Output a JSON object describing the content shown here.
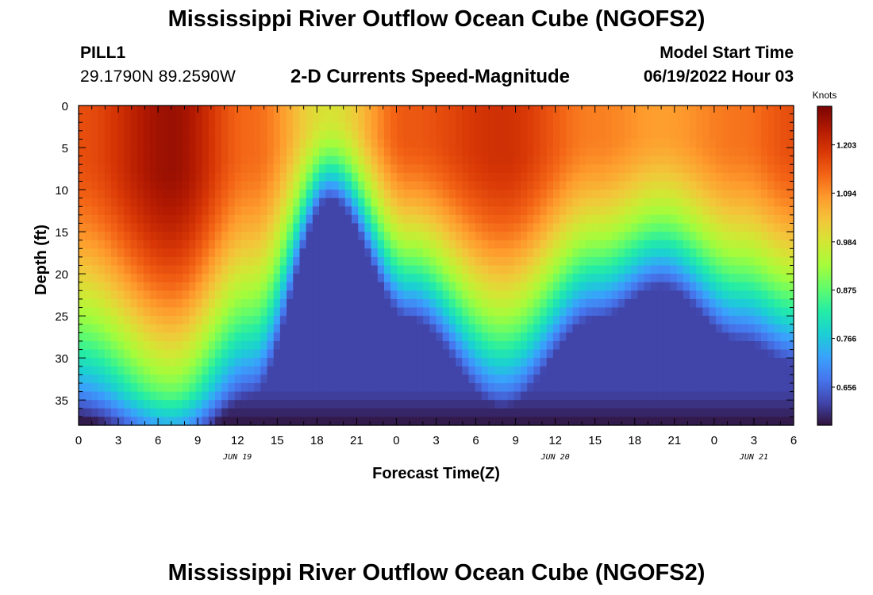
{
  "header": {
    "title": "Mississippi River Outflow Ocean Cube (NGOFS2)",
    "station_id": "PILL1",
    "station_coords": "29.1790N  89.2590W",
    "subtitle": "2-D Currents Speed-Magnitude",
    "model_start_label": "Model Start Time",
    "model_start_value": "06/19/2022 Hour 03"
  },
  "footer": {
    "title": "Mississippi River Outflow Ocean Cube (NGOFS2)"
  },
  "chart_data": {
    "type": "heatmap",
    "title": "2-D Currents Speed-Magnitude",
    "xlabel": "Forecast Time(Z)",
    "ylabel": "Depth (ft)",
    "x_hours_from_start": [
      0,
      54
    ],
    "x_tick_labels": [
      "0",
      "3",
      "6",
      "9",
      "12",
      "15",
      "18",
      "21",
      "0",
      "3",
      "6",
      "9",
      "12",
      "15",
      "18",
      "21",
      "0",
      "3",
      "6"
    ],
    "date_labels": [
      {
        "label": "JUN 19",
        "hour": 12
      },
      {
        "label": "JUN 20",
        "hour": 36
      },
      {
        "label": "JUN 21",
        "hour": 51
      }
    ],
    "y_range": [
      0,
      38
    ],
    "y_ticks": [
      0,
      5,
      10,
      15,
      20,
      25,
      30,
      35
    ],
    "y_inverted": true,
    "colorbar": {
      "label": "Knots",
      "ticks": [
        0.656,
        0.766,
        0.875,
        0.984,
        1.094,
        1.203
      ],
      "range": [
        0.57,
        1.29
      ],
      "colors": [
        "#30123b",
        "#4145ab",
        "#4675ed",
        "#39a2fc",
        "#1bcfd4",
        "#24eca6",
        "#61fc6c",
        "#a4fc3b",
        "#d1e834",
        "#f3c63a",
        "#fe9b2d",
        "#f36315",
        "#d93806",
        "#b11901",
        "#7a0403"
      ]
    },
    "speed_profile_samples": [
      {
        "hour": 0,
        "surface": 1.16,
        "core_depth_ft": 24
      },
      {
        "hour": 7,
        "surface": 1.26,
        "core_depth_ft": 29
      },
      {
        "hour": 13,
        "surface": 1.13,
        "core_depth_ft": 22
      },
      {
        "hour": 19,
        "surface": 0.99,
        "core_depth_ft": 4
      },
      {
        "hour": 25,
        "surface": 1.15,
        "core_depth_ft": 15
      },
      {
        "hour": 32,
        "surface": 1.2,
        "core_depth_ft": 23
      },
      {
        "hour": 39,
        "surface": 1.11,
        "core_depth_ft": 15
      },
      {
        "hour": 44,
        "surface": 1.08,
        "core_depth_ft": 12
      },
      {
        "hour": 50,
        "surface": 1.12,
        "core_depth_ft": 17
      },
      {
        "hour": 54,
        "surface": 1.16,
        "core_depth_ft": 19
      }
    ],
    "grid": false
  }
}
